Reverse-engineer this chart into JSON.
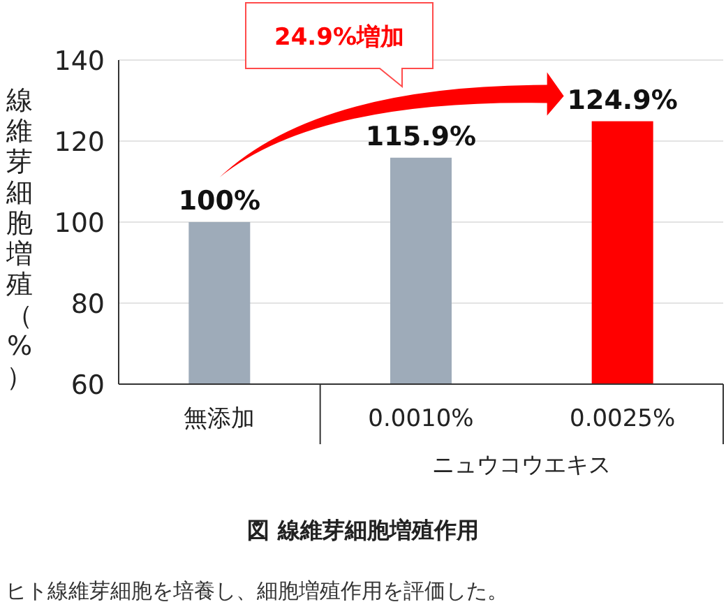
{
  "chart_data": {
    "type": "bar",
    "title": "図 線維芽細胞増殖作用",
    "ylabel": "線維芽細胞増殖（%）",
    "xlabel": "ニュウコウエキス",
    "categories": [
      "無添加",
      "0.0010%",
      "0.0025%"
    ],
    "values": [
      100,
      115.9,
      124.9
    ],
    "colors": [
      "#9eabb9",
      "#9eabb9",
      "#ff0000"
    ],
    "value_labels": [
      "100%",
      "115.9%",
      "124.9%"
    ],
    "ylim": [
      60,
      140
    ],
    "yticks": [
      60,
      80,
      100,
      120,
      140
    ],
    "grid": "y",
    "annotations": [
      "24.9%増加",
      "ヒト線維芽細胞を培養し、細胞増殖作用を評価した。"
    ]
  }
}
